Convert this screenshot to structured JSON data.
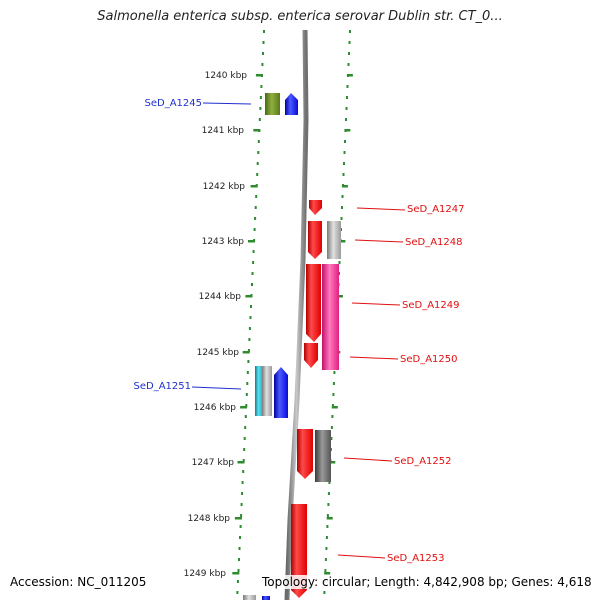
{
  "title": "Salmonella enterica subsp. enterica serovar Dublin str. CT_0...",
  "footer": {
    "accession": "Accession: NC_011205",
    "topology": "Topology: circular; Length: 4,842,908 bp; Genes: 4,618"
  },
  "colors": {
    "scale_marks": "#2e8b2e",
    "backbone": "#888888",
    "left_label": "#1f2fd0",
    "right_label": "#e01010",
    "gene_red": "#ff1010",
    "gene_blue": "#1a1aff",
    "gene_olive": "#6b8e23",
    "gene_cyan": "#1fb5c9",
    "gene_gray": "#9a9a9a",
    "gene_darkgray": "#606060",
    "gene_magenta": "#ff2d9b"
  },
  "scale": {
    "unit": "kbp",
    "ticks": [
      {
        "label": "1240 kbp"
      },
      {
        "label": "1241 kbp"
      },
      {
        "label": "1242 kbp"
      },
      {
        "label": "1243 kbp"
      },
      {
        "label": "1244 kbp"
      },
      {
        "label": "1245 kbp"
      },
      {
        "label": "1246 kbp"
      },
      {
        "label": "1247 kbp"
      },
      {
        "label": "1248 kbp"
      },
      {
        "label": "1249 kbp"
      }
    ]
  },
  "gene_labels_left": [
    {
      "text": "SeD_A1245"
    },
    {
      "text": "SeD_A1251"
    }
  ],
  "gene_labels_right": [
    {
      "text": "SeD_A1247"
    },
    {
      "text": "SeD_A1248"
    },
    {
      "text": "SeD_A1249"
    },
    {
      "text": "SeD_A1250"
    },
    {
      "text": "SeD_A1252"
    },
    {
      "text": "SeD_A1253"
    }
  ]
}
